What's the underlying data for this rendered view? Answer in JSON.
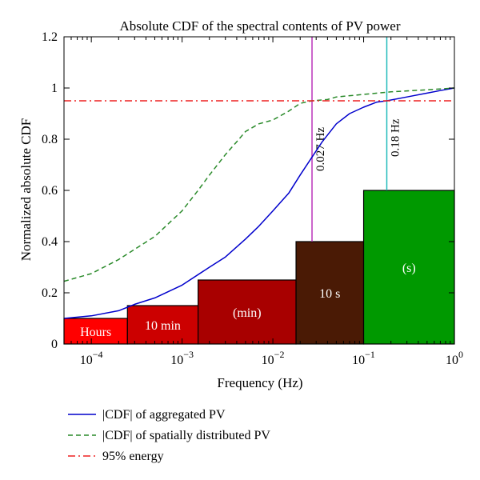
{
  "chart_data": {
    "type": "line",
    "title": "Absolute CDF of the spectral contents of PV power",
    "xlabel": "Frequency (Hz)",
    "ylabel": "Normalized absolute CDF",
    "x_scale": "log",
    "xlim": [
      5e-05,
      1
    ],
    "ylim": [
      0,
      1.2
    ],
    "x_ticks": [
      {
        "value": 0.0001,
        "base": "10",
        "exp": "−4"
      },
      {
        "value": 0.001,
        "base": "10",
        "exp": "−3"
      },
      {
        "value": 0.01,
        "base": "10",
        "exp": "−2"
      },
      {
        "value": 0.1,
        "base": "10",
        "exp": "−1"
      },
      {
        "value": 1,
        "base": "10",
        "exp": "0"
      }
    ],
    "y_ticks": [
      {
        "value": 0,
        "label": "0"
      },
      {
        "value": 0.2,
        "label": "0.2"
      },
      {
        "value": 0.4,
        "label": "0.4"
      },
      {
        "value": 0.6,
        "label": "0.6"
      },
      {
        "value": 0.8,
        "label": "0.8"
      },
      {
        "value": 1,
        "label": "1"
      },
      {
        "value": 1.2,
        "label": "1.2"
      }
    ],
    "grid": false,
    "legend_position": "bottom, below plot",
    "series": [
      {
        "name": "|CDF| of aggregated PV",
        "color": "#0000cc",
        "style": "solid",
        "points": [
          [
            5e-05,
            0.1
          ],
          [
            0.0001,
            0.11
          ],
          [
            0.0002,
            0.13
          ],
          [
            0.0003,
            0.155
          ],
          [
            0.0005,
            0.18
          ],
          [
            0.001,
            0.23
          ],
          [
            0.002,
            0.3
          ],
          [
            0.003,
            0.34
          ],
          [
            0.005,
            0.41
          ],
          [
            0.007,
            0.46
          ],
          [
            0.01,
            0.52
          ],
          [
            0.015,
            0.59
          ],
          [
            0.02,
            0.66
          ],
          [
            0.027,
            0.73
          ],
          [
            0.035,
            0.79
          ],
          [
            0.05,
            0.86
          ],
          [
            0.07,
            0.9
          ],
          [
            0.1,
            0.925
          ],
          [
            0.14,
            0.945
          ],
          [
            0.18,
            0.95
          ],
          [
            0.3,
            0.965
          ],
          [
            0.5,
            0.98
          ],
          [
            0.7,
            0.99
          ],
          [
            1,
            1.0
          ]
        ]
      },
      {
        "name": "|CDF| of spatially distributed PV",
        "color": "#2a8a2a",
        "style": "dashed",
        "points": [
          [
            5e-05,
            0.245
          ],
          [
            0.0001,
            0.275
          ],
          [
            0.0002,
            0.33
          ],
          [
            0.0003,
            0.37
          ],
          [
            0.0005,
            0.42
          ],
          [
            0.001,
            0.52
          ],
          [
            0.0015,
            0.6
          ],
          [
            0.002,
            0.66
          ],
          [
            0.003,
            0.74
          ],
          [
            0.004,
            0.79
          ],
          [
            0.005,
            0.83
          ],
          [
            0.007,
            0.86
          ],
          [
            0.01,
            0.875
          ],
          [
            0.015,
            0.91
          ],
          [
            0.02,
            0.94
          ],
          [
            0.027,
            0.95
          ],
          [
            0.04,
            0.955
          ],
          [
            0.05,
            0.965
          ],
          [
            0.1,
            0.975
          ],
          [
            0.2,
            0.985
          ],
          [
            0.5,
            0.993
          ],
          [
            1,
            1.0
          ]
        ]
      },
      {
        "name": "95% energy",
        "color": "#ee2222",
        "style": "dashdot",
        "points": [
          [
            5e-05,
            0.95
          ],
          [
            1,
            0.95
          ]
        ]
      }
    ],
    "bands": [
      {
        "label": "Hours",
        "x0": 5e-05,
        "x1": 0.00025,
        "height": 0.1,
        "color": "#ff0000"
      },
      {
        "label": "10 min",
        "x0": 0.00025,
        "x1": 0.0015,
        "height": 0.15,
        "color": "#cc0000"
      },
      {
        "label": "(min)",
        "x0": 0.0015,
        "x1": 0.018,
        "height": 0.25,
        "color": "#a80000"
      },
      {
        "label": "10 s",
        "x0": 0.018,
        "x1": 0.1,
        "height": 0.4,
        "color": "#4a1a05"
      },
      {
        "label": "(s)",
        "x0": 0.1,
        "x1": 1,
        "height": 0.6,
        "color": "#009900"
      }
    ],
    "vlines": [
      {
        "x": 0.027,
        "label": "0.027 Hz",
        "color": "#bb33bb",
        "y0": 0.4,
        "y1": 1.2
      },
      {
        "x": 0.18,
        "label": "0.18 Hz",
        "color": "#22bbbb",
        "y0": 0.6,
        "y1": 1.2
      }
    ]
  }
}
